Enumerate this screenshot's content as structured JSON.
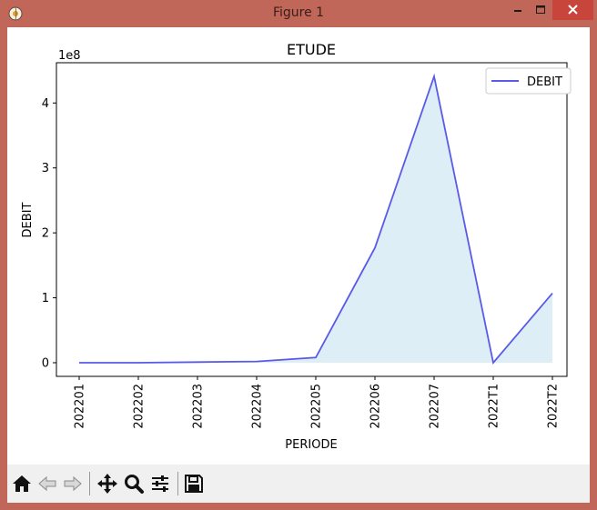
{
  "window": {
    "title": "Figure 1",
    "minimize_icon": "minimize-icon",
    "maximize_icon": "maximize-icon",
    "close_icon": "close-icon"
  },
  "toolbar": {
    "buttons": [
      "home-icon",
      "back-arrow-icon",
      "forward-arrow-icon",
      "pan-icon",
      "zoom-icon",
      "configure-subplots-icon",
      "save-icon"
    ]
  },
  "colors": {
    "line": "#5a5ae8",
    "fill": "#ddeef6",
    "titlebar": "#c0675a"
  },
  "chart_data": {
    "type": "area",
    "title": "ETUDE",
    "xlabel": "PERIODE",
    "ylabel": "DEBIT",
    "offset_label": "1e8",
    "categories": [
      "202201",
      "202202",
      "202203",
      "202204",
      "202205",
      "202206",
      "202207",
      "2022T1",
      "2022T2"
    ],
    "series": [
      {
        "name": "DEBIT",
        "values": [
          0.0,
          0.0,
          0.01,
          0.02,
          0.08,
          1.77,
          4.41,
          0.0,
          1.07
        ]
      }
    ],
    "yticks": [
      0,
      1,
      2,
      3,
      4
    ],
    "ylim": [
      -0.21,
      4.62
    ],
    "legend": "top-right",
    "grid": false
  }
}
